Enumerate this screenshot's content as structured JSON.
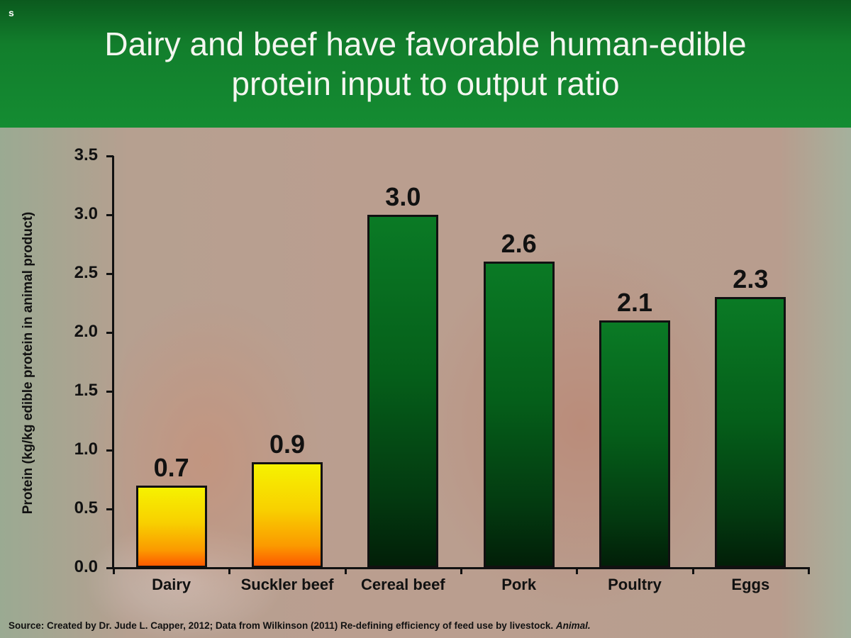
{
  "slide": {
    "corner_mark": "s",
    "title_line1": "Dairy and beef have favorable human-edible",
    "title_line2": "protein input to output ratio",
    "source_text": "Source: Created by Dr. Jude L. Capper, 2012; Data from Wilkinson (2011) Re-defining efficiency of feed use by livestock. ",
    "source_journal": "Animal."
  },
  "colors": {
    "header_green": "#148c32",
    "bar_yellow_top": "#f6f200",
    "bar_orange_bottom": "#fd5a00",
    "bar_green_top": "#0a7a25",
    "bar_green_bottom": "#021f08"
  },
  "chart_data": {
    "type": "bar",
    "title": "Dairy and beef have favorable human-edible protein input to output ratio",
    "xlabel": "",
    "ylabel": "Protein (kg/kg edible protein in animal product)",
    "categories": [
      "Dairy",
      "Suckler beef",
      "Cereal beef",
      "Pork",
      "Poultry",
      "Eggs"
    ],
    "values": [
      0.7,
      0.9,
      3.0,
      2.6,
      2.1,
      2.3
    ],
    "value_labels": [
      "0.7",
      "0.9",
      "3.0",
      "2.6",
      "2.1",
      "2.3"
    ],
    "bar_colors": [
      "yellow-orange",
      "yellow-orange",
      "green",
      "green",
      "green",
      "green"
    ],
    "ylim": [
      0,
      3.5
    ],
    "yticks": [
      "0.0",
      "0.5",
      "1.0",
      "1.5",
      "2.0",
      "2.5",
      "3.0",
      "3.5"
    ],
    "grid": false,
    "legend": null
  }
}
